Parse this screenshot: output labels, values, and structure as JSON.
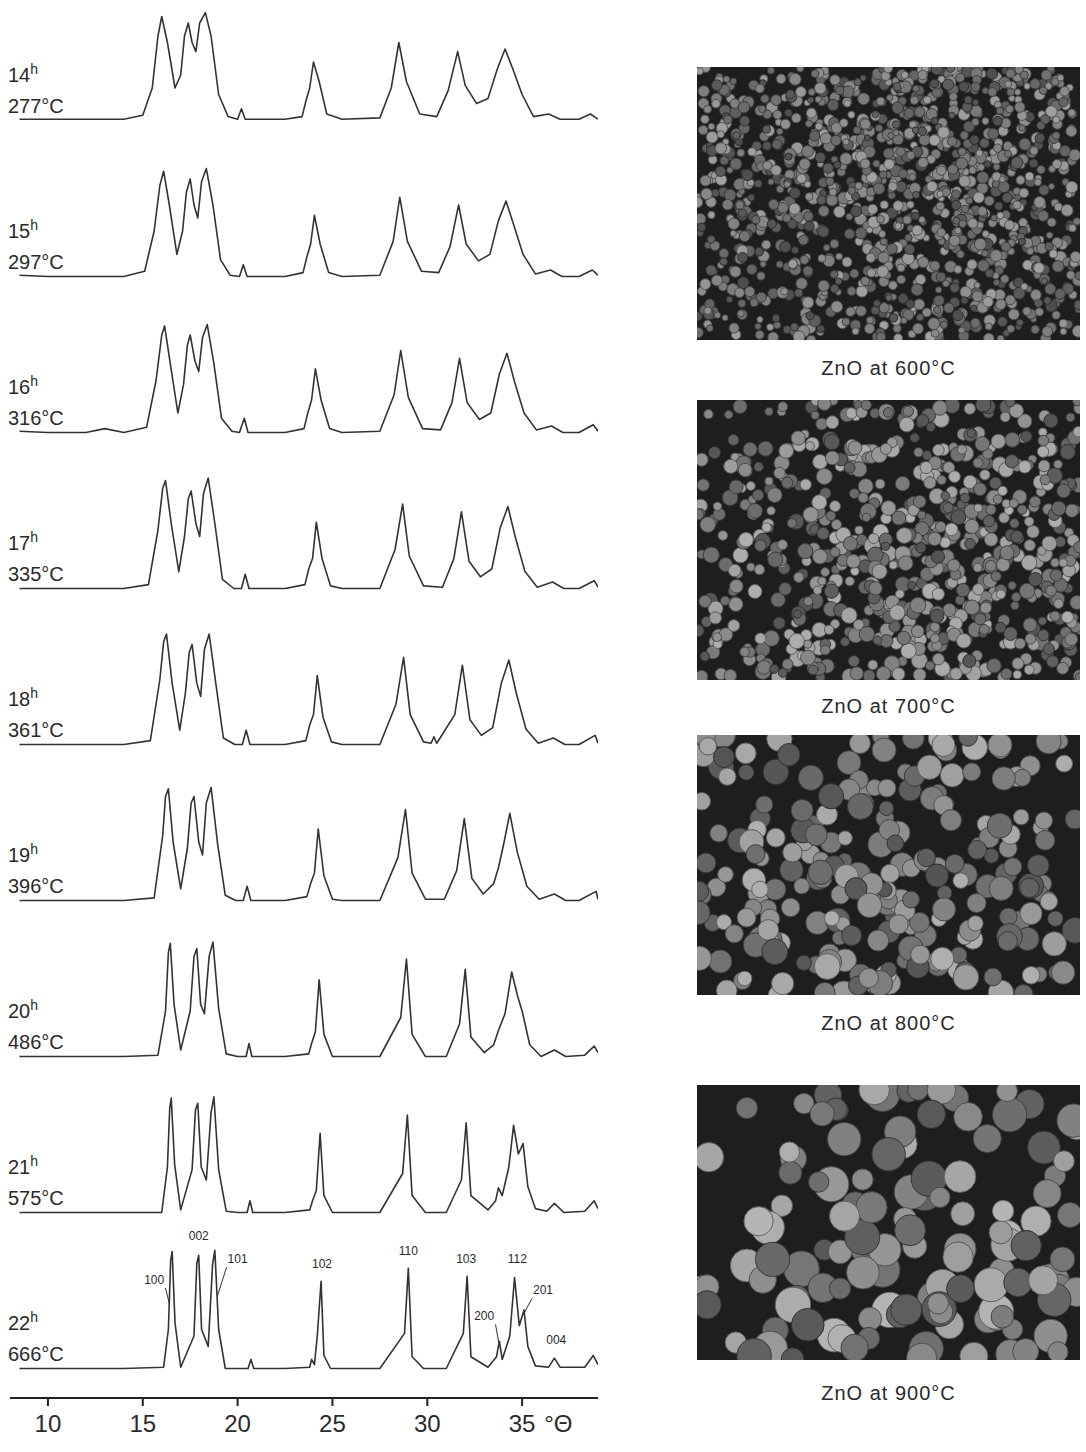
{
  "chart_data": {
    "type": "line",
    "x_label": "°Θ",
    "xlim": [
      8,
      39
    ],
    "xticks": [
      10,
      15,
      20,
      25,
      30,
      35
    ],
    "ylim": [
      0,
      100
    ],
    "tick_labels": "x",
    "color": "#333333",
    "series": [
      {
        "name": "14h 277°C",
        "x": [
          8.5,
          10,
          12,
          14,
          15.0,
          15.5,
          15.8,
          16.0,
          16.3,
          16.7,
          17.0,
          17.2,
          17.4,
          17.6,
          17.8,
          18.0,
          18.3,
          18.6,
          19.0,
          19.5,
          20.0,
          20.2,
          20.4,
          22.5,
          23.4,
          23.6,
          23.8,
          24.0,
          24.3,
          24.7,
          25.5,
          27.5,
          28.1,
          28.5,
          28.9,
          29.6,
          30.5,
          31.1,
          31.6,
          32.0,
          32.6,
          33.2,
          33.7,
          34.1,
          34.5,
          35.0,
          35.6,
          36.4,
          37.0,
          38.0,
          38.6,
          39.0
        ],
        "values": [
          6,
          6,
          6,
          6,
          9,
          30,
          70,
          85,
          65,
          30,
          40,
          70,
          80,
          65,
          58,
          80,
          88,
          70,
          25,
          8,
          6,
          14,
          6,
          6,
          8,
          20,
          30,
          50,
          35,
          10,
          6,
          7,
          30,
          65,
          35,
          10,
          8,
          28,
          58,
          32,
          18,
          22,
          45,
          60,
          45,
          25,
          8,
          10,
          6,
          6,
          10,
          6
        ]
      },
      {
        "name": "15h 297°C",
        "x": [
          8.5,
          10,
          12,
          14,
          15.1,
          15.6,
          15.9,
          16.1,
          16.4,
          16.8,
          17.1,
          17.3,
          17.5,
          17.7,
          17.9,
          18.1,
          18.35,
          18.7,
          19.1,
          19.6,
          20.1,
          20.3,
          20.5,
          22.5,
          23.45,
          23.65,
          23.85,
          24.05,
          24.35,
          24.8,
          25.5,
          27.5,
          28.2,
          28.55,
          28.95,
          29.7,
          30.6,
          31.2,
          31.65,
          32.05,
          32.7,
          33.3,
          33.75,
          34.15,
          34.55,
          35.05,
          35.7,
          36.5,
          37.1,
          38.0,
          38.7,
          39.0
        ],
        "values": [
          6,
          5,
          5,
          5,
          9,
          40,
          75,
          86,
          60,
          22,
          40,
          70,
          80,
          60,
          50,
          78,
          88,
          60,
          18,
          6,
          5,
          14,
          5,
          5,
          8,
          20,
          30,
          52,
          30,
          8,
          5,
          6,
          32,
          66,
          32,
          9,
          8,
          28,
          60,
          30,
          17,
          22,
          48,
          63,
          45,
          22,
          7,
          10,
          5,
          5,
          10,
          6
        ]
      },
      {
        "name": "16h 316°C",
        "x": [
          8.5,
          10,
          12,
          13,
          14,
          15.2,
          15.7,
          16.0,
          16.15,
          16.45,
          16.85,
          17.15,
          17.35,
          17.5,
          17.75,
          17.95,
          18.15,
          18.4,
          18.75,
          19.15,
          19.7,
          20.1,
          20.35,
          20.55,
          22.5,
          23.5,
          23.7,
          23.9,
          24.1,
          24.4,
          24.85,
          25.5,
          27.5,
          28.25,
          28.6,
          29.0,
          29.75,
          30.7,
          31.3,
          31.7,
          32.1,
          32.75,
          33.35,
          33.8,
          34.2,
          34.6,
          35.1,
          35.75,
          36.55,
          37.15,
          38.0,
          38.75,
          39.0
        ],
        "values": [
          6,
          5,
          5,
          8,
          5,
          9,
          45,
          80,
          87,
          58,
          20,
          42,
          72,
          80,
          60,
          52,
          78,
          88,
          58,
          16,
          6,
          5,
          16,
          5,
          5,
          8,
          20,
          30,
          54,
          30,
          8,
          5,
          6,
          34,
          68,
          32,
          8,
          7,
          28,
          62,
          28,
          15,
          20,
          50,
          66,
          44,
          20,
          7,
          10,
          5,
          5,
          11,
          6
        ]
      },
      {
        "name": "17h 335°C",
        "x": [
          8.5,
          10,
          12,
          14,
          15.3,
          15.8,
          16.05,
          16.2,
          16.5,
          16.9,
          17.2,
          17.4,
          17.55,
          17.8,
          18.0,
          18.2,
          18.45,
          18.8,
          19.2,
          19.8,
          20.2,
          20.4,
          20.6,
          22.5,
          23.55,
          23.75,
          23.95,
          24.15,
          24.45,
          24.9,
          25.5,
          27.5,
          28.3,
          28.7,
          29.05,
          29.8,
          30.8,
          31.4,
          31.8,
          32.2,
          32.8,
          33.4,
          33.85,
          34.25,
          34.65,
          35.15,
          35.8,
          36.6,
          37.2,
          38.0,
          38.8,
          39.0
        ],
        "values": [
          5,
          5,
          5,
          5,
          8,
          50,
          82,
          88,
          55,
          18,
          45,
          74,
          80,
          55,
          45,
          78,
          90,
          55,
          12,
          5,
          5,
          16,
          5,
          5,
          8,
          20,
          28,
          56,
          28,
          7,
          5,
          5,
          35,
          70,
          30,
          7,
          6,
          28,
          64,
          26,
          14,
          20,
          52,
          68,
          44,
          18,
          6,
          10,
          5,
          5,
          11,
          6
        ]
      },
      {
        "name": "18h 361°C",
        "x": [
          8.5,
          10,
          12,
          14,
          15.4,
          15.9,
          16.1,
          16.25,
          16.55,
          16.95,
          17.25,
          17.45,
          17.6,
          17.85,
          18.05,
          18.25,
          18.5,
          18.85,
          19.25,
          19.85,
          20.25,
          20.45,
          20.65,
          22.5,
          23.6,
          23.8,
          24.0,
          24.2,
          24.5,
          24.95,
          25.5,
          27.5,
          28.35,
          28.75,
          29.1,
          29.8,
          30.2,
          30.35,
          30.5,
          31.45,
          31.85,
          32.25,
          32.85,
          33.45,
          33.9,
          34.3,
          34.7,
          35.2,
          35.85,
          36.65,
          37.25,
          38.0,
          38.85,
          39.0
        ],
        "values": [
          5,
          5,
          5,
          5,
          8,
          55,
          84,
          90,
          52,
          16,
          45,
          76,
          82,
          52,
          42,
          78,
          90,
          52,
          10,
          5,
          5,
          16,
          5,
          5,
          8,
          20,
          28,
          58,
          26,
          7,
          5,
          5,
          36,
          72,
          28,
          7,
          6,
          11,
          6,
          28,
          66,
          24,
          12,
          18,
          52,
          70,
          44,
          17,
          6,
          10,
          5,
          5,
          12,
          6
        ]
      },
      {
        "name": "19h 396°C",
        "x": [
          8.5,
          10,
          12,
          14,
          15.6,
          16.05,
          16.2,
          16.35,
          16.6,
          17.0,
          17.35,
          17.55,
          17.7,
          17.95,
          18.15,
          18.35,
          18.6,
          18.95,
          19.35,
          19.9,
          20.3,
          20.5,
          20.7,
          22.5,
          23.65,
          23.85,
          24.05,
          24.25,
          24.55,
          25.0,
          25.5,
          27.5,
          28.45,
          28.85,
          29.2,
          29.9,
          30.9,
          31.55,
          31.95,
          32.35,
          32.95,
          33.5,
          33.75,
          34.05,
          34.35,
          34.75,
          35.25,
          35.9,
          36.7,
          37.3,
          38.0,
          38.9,
          39.0
        ],
        "values": [
          5,
          5,
          5,
          5,
          7,
          55,
          85,
          91,
          50,
          14,
          45,
          80,
          85,
          50,
          40,
          80,
          92,
          48,
          9,
          5,
          5,
          16,
          5,
          5,
          8,
          18,
          26,
          60,
          24,
          6,
          5,
          5,
          38,
          75,
          26,
          6,
          6,
          28,
          68,
          22,
          10,
          18,
          30,
          50,
          72,
          42,
          16,
          6,
          10,
          5,
          5,
          12,
          6
        ]
      },
      {
        "name": "20h 486°C",
        "x": [
          8.5,
          10,
          12,
          14,
          15.8,
          16.2,
          16.35,
          16.45,
          16.65,
          17.0,
          17.5,
          17.7,
          17.85,
          18.05,
          18.25,
          18.5,
          18.7,
          19.0,
          19.4,
          20.0,
          20.45,
          20.6,
          20.75,
          22.5,
          23.75,
          23.9,
          24.1,
          24.3,
          24.55,
          25.0,
          27.5,
          28.6,
          28.9,
          29.2,
          29.9,
          31.0,
          31.7,
          32.0,
          32.3,
          33.0,
          33.5,
          33.75,
          34.1,
          34.45,
          34.75,
          35.0,
          35.4,
          36.0,
          36.7,
          37.3,
          38.3,
          38.8,
          39.0
        ],
        "values": [
          5,
          5,
          5,
          5,
          6,
          40,
          85,
          92,
          45,
          10,
          40,
          82,
          88,
          45,
          38,
          82,
          93,
          42,
          7,
          5,
          5,
          15,
          5,
          5,
          7,
          15,
          24,
          64,
          22,
          5,
          5,
          35,
          80,
          22,
          5,
          5,
          30,
          72,
          20,
          8,
          14,
          25,
          38,
          70,
          52,
          40,
          14,
          5,
          10,
          5,
          6,
          13,
          8
        ]
      },
      {
        "name": "21h 575°C",
        "x": [
          8.5,
          10,
          12,
          13.5,
          16.0,
          16.3,
          16.42,
          16.5,
          16.68,
          17.0,
          17.6,
          17.78,
          17.9,
          18.08,
          18.35,
          18.6,
          18.75,
          19.0,
          19.4,
          20.0,
          20.5,
          20.65,
          20.8,
          22.5,
          23.8,
          23.95,
          24.15,
          24.35,
          24.55,
          25.0,
          27.5,
          28.7,
          28.95,
          29.2,
          29.9,
          31.0,
          31.8,
          32.05,
          32.3,
          33.2,
          33.6,
          33.75,
          33.95,
          34.3,
          34.55,
          34.8,
          35.05,
          35.3,
          35.7,
          36.3,
          36.7,
          37.2,
          38.3,
          38.8,
          39.0
        ],
        "values": [
          5,
          5,
          5,
          5,
          5,
          40,
          85,
          93,
          42,
          7,
          38,
          84,
          89,
          40,
          30,
          82,
          94,
          38,
          6,
          5,
          5,
          14,
          5,
          5,
          7,
          14,
          22,
          66,
          18,
          5,
          5,
          35,
          80,
          18,
          5,
          5,
          30,
          74,
          18,
          7,
          14,
          24,
          18,
          40,
          72,
          50,
          58,
          25,
          8,
          6,
          12,
          5,
          6,
          14,
          8
        ]
      },
      {
        "name": "22h 666°C",
        "x": [
          8.5,
          10,
          12,
          14,
          16.1,
          16.35,
          16.47,
          16.55,
          16.7,
          17.0,
          17.7,
          17.85,
          17.95,
          18.1,
          18.45,
          18.68,
          18.8,
          19.0,
          19.35,
          20.0,
          20.55,
          20.7,
          20.85,
          22.5,
          23.8,
          23.9,
          24.05,
          24.2,
          24.4,
          24.55,
          24.9,
          27.5,
          28.8,
          29.0,
          29.2,
          29.8,
          31.0,
          31.9,
          32.1,
          32.3,
          33.2,
          33.65,
          33.8,
          33.95,
          34.35,
          34.6,
          34.85,
          35.1,
          35.3,
          35.7,
          36.4,
          36.7,
          37.0,
          38.3,
          38.75,
          39.0
        ],
        "values": [
          5,
          5,
          5,
          5,
          6,
          35,
          88,
          95,
          40,
          6,
          30,
          86,
          92,
          35,
          22,
          85,
          96,
          35,
          5,
          5,
          5,
          12,
          5,
          5,
          6,
          12,
          8,
          30,
          72,
          15,
          5,
          5,
          32,
          82,
          14,
          5,
          5,
          32,
          76,
          14,
          6,
          14,
          26,
          12,
          30,
          75,
          38,
          50,
          22,
          7,
          6,
          13,
          6,
          6,
          15,
          8
        ],
        "annotations": [
          {
            "text": "100",
            "x": 15.6,
            "y": 70,
            "point": [
              16.4,
              55
            ]
          },
          {
            "text": "002",
            "x": 17.95,
            "y": 104
          },
          {
            "text": "101",
            "x": 20.0,
            "y": 86,
            "point": [
              18.92,
              60
            ]
          },
          {
            "text": "102",
            "x": 24.45,
            "y": 82
          },
          {
            "text": "110",
            "x": 29.0,
            "y": 92
          },
          {
            "text": "103",
            "x": 32.05,
            "y": 86
          },
          {
            "text": "200",
            "x": 33.0,
            "y": 42,
            "point": [
              33.78,
              24
            ]
          },
          {
            "text": "112",
            "x": 34.75,
            "y": 86
          },
          {
            "text": "201",
            "x": 36.1,
            "y": 62,
            "point": [
              35.12,
              48
            ]
          },
          {
            "text": "004",
            "x": 36.8,
            "y": 24
          }
        ]
      }
    ]
  },
  "micrographs": [
    {
      "caption": "ZnO at 600°C"
    },
    {
      "caption": "ZnO at 700°C"
    },
    {
      "caption": "ZnO at 800°C"
    },
    {
      "caption": "ZnO at 900°C"
    }
  ]
}
